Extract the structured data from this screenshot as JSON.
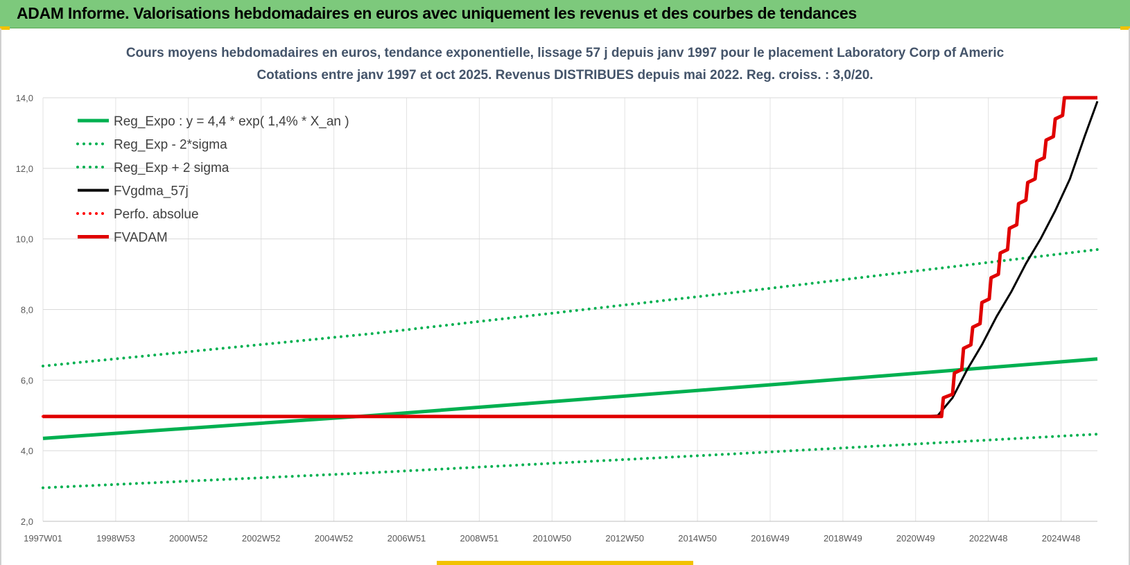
{
  "banner": {
    "title": "ADAM Informe. Valorisations hebdomadaires en euros avec uniquement les revenus et des courbes de tendances"
  },
  "chart_data": {
    "type": "line",
    "title": "Cours moyens hebdomadaires en euros, tendance exponentielle, lissage 57 j depuis janv 1997 pour le placement Laboratory Corp of Americ",
    "subtitle": "Cotations entre janv 1997 et oct 2025. Revenus DISTRIBUES depuis mai 2022. Reg. croiss. : 3,0/20.",
    "xlabel": "",
    "ylabel": "",
    "x_ticks": [
      "1997W01",
      "1998W53",
      "2000W52",
      "2002W52",
      "2004W52",
      "2006W51",
      "2008W51",
      "2010W50",
      "2012W50",
      "2014W50",
      "2016W49",
      "2018W49",
      "2020W49",
      "2022W48",
      "2024W48"
    ],
    "x_range": [
      1997.0,
      2025.75
    ],
    "ylim": [
      2.0,
      14.0
    ],
    "y_ticks": [
      "2,0",
      "4,0",
      "6,0",
      "8,0",
      "10,0",
      "12,0",
      "14,0"
    ],
    "y_tick_values": [
      2,
      4,
      6,
      8,
      10,
      12,
      14
    ],
    "grid": true,
    "legend_position": "top-left",
    "series": [
      {
        "name": "Reg_Expo : y = 4,4 * exp( 1,4% *  X_an )",
        "color": "#00b050",
        "style": "solid",
        "points": [
          [
            1997.0,
            4.35
          ],
          [
            2006.0,
            5.0
          ],
          [
            2016.0,
            5.8
          ],
          [
            2025.75,
            6.6
          ]
        ]
      },
      {
        "name": "Reg_Exp - 2*sigma",
        "color": "#00b050",
        "style": "dotted",
        "points": [
          [
            1997.0,
            2.95
          ],
          [
            2006.0,
            3.38
          ],
          [
            2016.0,
            3.92
          ],
          [
            2025.75,
            4.47
          ]
        ]
      },
      {
        "name": "Reg_Exp + 2 sigma",
        "color": "#00b050",
        "style": "dotted",
        "points": [
          [
            1997.0,
            6.4
          ],
          [
            2006.0,
            7.32
          ],
          [
            2016.0,
            8.5
          ],
          [
            2025.75,
            9.7
          ]
        ]
      },
      {
        "name": "FVgdma_57j",
        "color": "#000000",
        "style": "solid",
        "points": [
          [
            1997.0,
            4.97
          ],
          [
            2021.0,
            4.97
          ],
          [
            2021.4,
            5.0
          ],
          [
            2021.8,
            5.5
          ],
          [
            2022.2,
            6.3
          ],
          [
            2022.6,
            7.0
          ],
          [
            2023.0,
            7.8
          ],
          [
            2023.4,
            8.5
          ],
          [
            2023.8,
            9.3
          ],
          [
            2024.2,
            10.0
          ],
          [
            2024.6,
            10.8
          ],
          [
            2025.0,
            11.7
          ],
          [
            2025.4,
            12.9
          ],
          [
            2025.75,
            13.9
          ]
        ]
      },
      {
        "name": "Perfo. absolue",
        "color": "#ff0000",
        "style": "dotted",
        "points": [
          [
            1997.0,
            4.97
          ],
          [
            2021.5,
            4.97
          ]
        ]
      },
      {
        "name": "FVADAM",
        "color": "#e00000",
        "style": "step",
        "points": [
          [
            1997.0,
            4.97
          ],
          [
            2021.5,
            4.97
          ],
          [
            2021.55,
            5.5
          ],
          [
            2021.8,
            5.6
          ],
          [
            2021.85,
            6.2
          ],
          [
            2022.05,
            6.3
          ],
          [
            2022.1,
            6.9
          ],
          [
            2022.3,
            7.0
          ],
          [
            2022.35,
            7.5
          ],
          [
            2022.55,
            7.6
          ],
          [
            2022.6,
            8.2
          ],
          [
            2022.8,
            8.3
          ],
          [
            2022.85,
            8.9
          ],
          [
            2023.05,
            9.0
          ],
          [
            2023.1,
            9.6
          ],
          [
            2023.3,
            9.7
          ],
          [
            2023.35,
            10.3
          ],
          [
            2023.55,
            10.4
          ],
          [
            2023.6,
            11.0
          ],
          [
            2023.8,
            11.1
          ],
          [
            2023.85,
            11.6
          ],
          [
            2024.05,
            11.7
          ],
          [
            2024.1,
            12.2
          ],
          [
            2024.3,
            12.3
          ],
          [
            2024.35,
            12.8
          ],
          [
            2024.55,
            12.9
          ],
          [
            2024.6,
            13.4
          ],
          [
            2024.8,
            13.5
          ],
          [
            2024.85,
            14.0
          ],
          [
            2025.75,
            14.0
          ]
        ]
      }
    ]
  }
}
